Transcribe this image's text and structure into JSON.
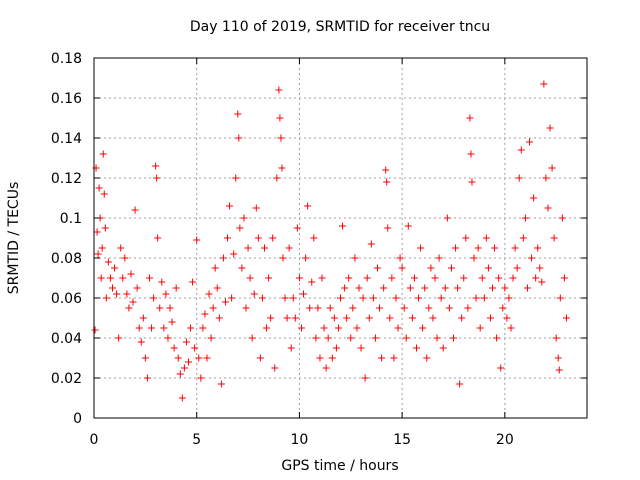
{
  "chart_data": {
    "type": "scatter",
    "title": "Day 110 of 2019, SRMTID for receiver tncu",
    "xlabel": "GPS time / hours",
    "ylabel": "SRMTID / TECUs",
    "xlim": [
      0,
      24
    ],
    "ylim": [
      0,
      0.18
    ],
    "xticks": [
      0,
      5,
      10,
      15,
      20
    ],
    "xtick_labels": [
      "0",
      "5",
      "10",
      "15",
      "20"
    ],
    "yticks": [
      0,
      0.02,
      0.04,
      0.06,
      0.08,
      0.1,
      0.12,
      0.14,
      0.16,
      0.18
    ],
    "ytick_labels": [
      "0",
      "0.02",
      "0.04",
      "0.06",
      "0.08",
      "0.1",
      "0.12",
      "0.14",
      "0.16",
      "0.18"
    ],
    "grid": true,
    "marker": "+",
    "color": "#ff0000",
    "series": [
      {
        "points": [
          [
            0.05,
            0.044
          ],
          [
            0.1,
            0.125
          ],
          [
            0.15,
            0.093
          ],
          [
            0.2,
            0.082
          ],
          [
            0.25,
            0.115
          ],
          [
            0.3,
            0.1
          ],
          [
            0.35,
            0.07
          ],
          [
            0.4,
            0.085
          ],
          [
            0.45,
            0.132
          ],
          [
            0.5,
            0.112
          ],
          [
            0.55,
            0.095
          ],
          [
            0.6,
            0.06
          ],
          [
            0.7,
            0.078
          ],
          [
            0.8,
            0.07
          ],
          [
            0.9,
            0.065
          ],
          [
            1.0,
            0.075
          ],
          [
            1.1,
            0.062
          ],
          [
            1.2,
            0.04
          ],
          [
            1.3,
            0.085
          ],
          [
            1.4,
            0.07
          ],
          [
            1.5,
            0.08
          ],
          [
            1.6,
            0.062
          ],
          [
            1.7,
            0.055
          ],
          [
            1.8,
            0.072
          ],
          [
            1.9,
            0.058
          ],
          [
            2.0,
            0.104
          ],
          [
            2.1,
            0.065
          ],
          [
            2.2,
            0.045
          ],
          [
            2.3,
            0.038
          ],
          [
            2.4,
            0.05
          ],
          [
            2.5,
            0.03
          ],
          [
            2.6,
            0.02
          ],
          [
            2.7,
            0.07
          ],
          [
            2.8,
            0.045
          ],
          [
            2.9,
            0.06
          ],
          [
            3.0,
            0.126
          ],
          [
            3.05,
            0.12
          ],
          [
            3.1,
            0.09
          ],
          [
            3.2,
            0.055
          ],
          [
            3.3,
            0.068
          ],
          [
            3.4,
            0.045
          ],
          [
            3.5,
            0.062
          ],
          [
            3.6,
            0.04
          ],
          [
            3.7,
            0.055
          ],
          [
            3.8,
            0.048
          ],
          [
            3.9,
            0.035
          ],
          [
            4.0,
            0.065
          ],
          [
            4.1,
            0.03
          ],
          [
            4.2,
            0.022
          ],
          [
            4.3,
            0.01
          ],
          [
            4.4,
            0.025
          ],
          [
            4.5,
            0.038
          ],
          [
            4.6,
            0.028
          ],
          [
            4.7,
            0.045
          ],
          [
            4.8,
            0.068
          ],
          [
            4.9,
            0.035
          ],
          [
            5.0,
            0.089
          ],
          [
            5.1,
            0.03
          ],
          [
            5.2,
            0.02
          ],
          [
            5.3,
            0.045
          ],
          [
            5.4,
            0.052
          ],
          [
            5.5,
            0.03
          ],
          [
            5.6,
            0.062
          ],
          [
            5.7,
            0.04
          ],
          [
            5.8,
            0.055
          ],
          [
            5.9,
            0.075
          ],
          [
            6.0,
            0.065
          ],
          [
            6.1,
            0.05
          ],
          [
            6.2,
            0.017
          ],
          [
            6.3,
            0.08
          ],
          [
            6.4,
            0.058
          ],
          [
            6.5,
            0.09
          ],
          [
            6.6,
            0.106
          ],
          [
            6.7,
            0.06
          ],
          [
            6.8,
            0.082
          ],
          [
            6.9,
            0.12
          ],
          [
            7.0,
            0.152
          ],
          [
            7.05,
            0.14
          ],
          [
            7.1,
            0.095
          ],
          [
            7.2,
            0.075
          ],
          [
            7.3,
            0.1
          ],
          [
            7.4,
            0.055
          ],
          [
            7.5,
            0.085
          ],
          [
            7.6,
            0.07
          ],
          [
            7.7,
            0.04
          ],
          [
            7.8,
            0.062
          ],
          [
            7.9,
            0.105
          ],
          [
            8.0,
            0.09
          ],
          [
            8.1,
            0.03
          ],
          [
            8.2,
            0.06
          ],
          [
            8.3,
            0.085
          ],
          [
            8.4,
            0.045
          ],
          [
            8.5,
            0.07
          ],
          [
            8.6,
            0.05
          ],
          [
            8.7,
            0.09
          ],
          [
            8.8,
            0.025
          ],
          [
            8.9,
            0.12
          ],
          [
            9.0,
            0.164
          ],
          [
            9.05,
            0.15
          ],
          [
            9.1,
            0.14
          ],
          [
            9.15,
            0.125
          ],
          [
            9.2,
            0.08
          ],
          [
            9.3,
            0.06
          ],
          [
            9.4,
            0.05
          ],
          [
            9.5,
            0.085
          ],
          [
            9.6,
            0.035
          ],
          [
            9.7,
            0.06
          ],
          [
            9.8,
            0.05
          ],
          [
            9.9,
            0.095
          ],
          [
            10.0,
            0.07
          ],
          [
            10.1,
            0.045
          ],
          [
            10.2,
            0.062
          ],
          [
            10.3,
            0.08
          ],
          [
            10.4,
            0.106
          ],
          [
            10.5,
            0.055
          ],
          [
            10.6,
            0.068
          ],
          [
            10.7,
            0.09
          ],
          [
            10.8,
            0.04
          ],
          [
            10.9,
            0.055
          ],
          [
            11.0,
            0.03
          ],
          [
            11.1,
            0.07
          ],
          [
            11.2,
            0.045
          ],
          [
            11.3,
            0.025
          ],
          [
            11.4,
            0.04
          ],
          [
            11.5,
            0.055
          ],
          [
            11.6,
            0.03
          ],
          [
            11.7,
            0.05
          ],
          [
            11.8,
            0.035
          ],
          [
            11.9,
            0.045
          ],
          [
            12.0,
            0.06
          ],
          [
            12.1,
            0.096
          ],
          [
            12.2,
            0.065
          ],
          [
            12.3,
            0.05
          ],
          [
            12.4,
            0.07
          ],
          [
            12.5,
            0.04
          ],
          [
            12.6,
            0.055
          ],
          [
            12.7,
            0.08
          ],
          [
            12.8,
            0.045
          ],
          [
            12.9,
            0.065
          ],
          [
            13.0,
            0.035
          ],
          [
            13.1,
            0.06
          ],
          [
            13.2,
            0.02
          ],
          [
            13.3,
            0.07
          ],
          [
            13.4,
            0.05
          ],
          [
            13.5,
            0.087
          ],
          [
            13.6,
            0.06
          ],
          [
            13.7,
            0.04
          ],
          [
            13.8,
            0.075
          ],
          [
            13.9,
            0.055
          ],
          [
            14.0,
            0.03
          ],
          [
            14.1,
            0.065
          ],
          [
            14.2,
            0.124
          ],
          [
            14.25,
            0.118
          ],
          [
            14.3,
            0.095
          ],
          [
            14.4,
            0.05
          ],
          [
            14.5,
            0.07
          ],
          [
            14.6,
            0.03
          ],
          [
            14.7,
            0.06
          ],
          [
            14.8,
            0.045
          ],
          [
            14.9,
            0.08
          ],
          [
            15.0,
            0.075
          ],
          [
            15.1,
            0.055
          ],
          [
            15.2,
            0.04
          ],
          [
            15.3,
            0.096
          ],
          [
            15.4,
            0.065
          ],
          [
            15.5,
            0.05
          ],
          [
            15.6,
            0.07
          ],
          [
            15.7,
            0.035
          ],
          [
            15.8,
            0.06
          ],
          [
            15.9,
            0.085
          ],
          [
            16.0,
            0.045
          ],
          [
            16.1,
            0.065
          ],
          [
            16.2,
            0.03
          ],
          [
            16.3,
            0.055
          ],
          [
            16.4,
            0.075
          ],
          [
            16.5,
            0.05
          ],
          [
            16.6,
            0.07
          ],
          [
            16.7,
            0.04
          ],
          [
            16.8,
            0.08
          ],
          [
            16.9,
            0.06
          ],
          [
            17.0,
            0.035
          ],
          [
            17.1,
            0.065
          ],
          [
            17.2,
            0.1
          ],
          [
            17.3,
            0.055
          ],
          [
            17.4,
            0.075
          ],
          [
            17.5,
            0.04
          ],
          [
            17.6,
            0.085
          ],
          [
            17.7,
            0.065
          ],
          [
            17.8,
            0.017
          ],
          [
            17.9,
            0.05
          ],
          [
            18.0,
            0.07
          ],
          [
            18.1,
            0.09
          ],
          [
            18.2,
            0.055
          ],
          [
            18.3,
            0.15
          ],
          [
            18.35,
            0.132
          ],
          [
            18.4,
            0.118
          ],
          [
            18.5,
            0.08
          ],
          [
            18.6,
            0.06
          ],
          [
            18.7,
            0.085
          ],
          [
            18.8,
            0.045
          ],
          [
            18.9,
            0.07
          ],
          [
            19.0,
            0.06
          ],
          [
            19.1,
            0.09
          ],
          [
            19.2,
            0.075
          ],
          [
            19.3,
            0.05
          ],
          [
            19.4,
            0.065
          ],
          [
            19.5,
            0.085
          ],
          [
            19.6,
            0.04
          ],
          [
            19.7,
            0.07
          ],
          [
            19.8,
            0.025
          ],
          [
            19.9,
            0.055
          ],
          [
            20.0,
            0.065
          ],
          [
            20.1,
            0.05
          ],
          [
            20.2,
            0.06
          ],
          [
            20.3,
            0.045
          ],
          [
            20.4,
            0.07
          ],
          [
            20.5,
            0.085
          ],
          [
            20.6,
            0.075
          ],
          [
            20.7,
            0.12
          ],
          [
            20.8,
            0.134
          ],
          [
            20.9,
            0.09
          ],
          [
            21.0,
            0.1
          ],
          [
            21.1,
            0.065
          ],
          [
            21.2,
            0.138
          ],
          [
            21.3,
            0.08
          ],
          [
            21.4,
            0.11
          ],
          [
            21.5,
            0.07
          ],
          [
            21.6,
            0.085
          ],
          [
            21.7,
            0.075
          ],
          [
            21.8,
            0.068
          ],
          [
            21.9,
            0.167
          ],
          [
            22.0,
            0.12
          ],
          [
            22.1,
            0.105
          ],
          [
            22.2,
            0.145
          ],
          [
            22.3,
            0.125
          ],
          [
            22.4,
            0.09
          ],
          [
            22.5,
            0.04
          ],
          [
            22.6,
            0.03
          ],
          [
            22.65,
            0.024
          ],
          [
            22.7,
            0.06
          ],
          [
            22.8,
            0.1
          ],
          [
            22.9,
            0.07
          ],
          [
            23.0,
            0.05
          ]
        ]
      }
    ]
  }
}
